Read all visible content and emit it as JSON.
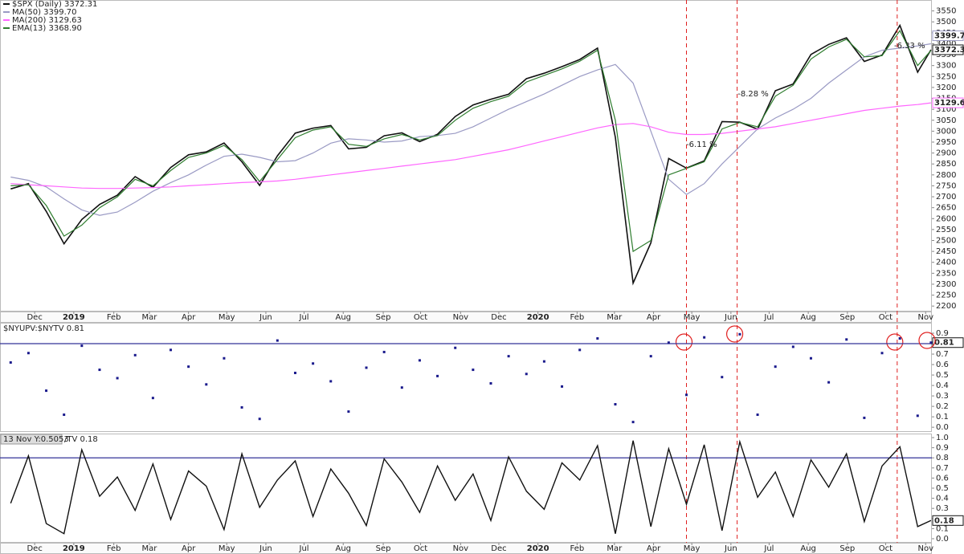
{
  "chart_data": [
    {
      "type": "line",
      "x": [
        0,
        2,
        4,
        6,
        8,
        10,
        12,
        14,
        16,
        18,
        20,
        22,
        24,
        26,
        28,
        30,
        32,
        34,
        36,
        38,
        40,
        42,
        44,
        46,
        48,
        50,
        52,
        54,
        56,
        58,
        60,
        62,
        64,
        66,
        68,
        70,
        72,
        74,
        76,
        78,
        80,
        82,
        84,
        86,
        88,
        90,
        92,
        94,
        96,
        98,
        100,
        102,
        103.5
      ],
      "xlim": [
        -1.2,
        103.6
      ],
      "ylim": [
        2175,
        3600
      ],
      "yticks": [
        2200,
        2250,
        2300,
        2350,
        2400,
        2450,
        2500,
        2550,
        2600,
        2650,
        2700,
        2750,
        2800,
        2850,
        2900,
        2950,
        3000,
        3050,
        3100,
        3150,
        3200,
        3250,
        3300,
        3350,
        3400,
        3450,
        3500,
        3550
      ],
      "xticks": [
        {
          "value": 2.7,
          "label": "Dec"
        },
        {
          "value": 7.1,
          "label": "2019"
        },
        {
          "value": 11.6,
          "label": "Feb"
        },
        {
          "value": 15.6,
          "label": "Mar"
        },
        {
          "value": 20,
          "label": "Apr"
        },
        {
          "value": 24.3,
          "label": "May"
        },
        {
          "value": 28.7,
          "label": "Jun"
        },
        {
          "value": 33,
          "label": "Jul"
        },
        {
          "value": 37.4,
          "label": "Aug"
        },
        {
          "value": 41.9,
          "label": "Sep"
        },
        {
          "value": 46.1,
          "label": "Oct"
        },
        {
          "value": 50.6,
          "label": "Nov"
        },
        {
          "value": 54.9,
          "label": "Dec"
        },
        {
          "value": 59.3,
          "label": "2020"
        },
        {
          "value": 63.7,
          "label": "Feb"
        },
        {
          "value": 67.9,
          "label": "Mar"
        },
        {
          "value": 72.3,
          "label": "Apr"
        },
        {
          "value": 76.6,
          "label": "May"
        },
        {
          "value": 81,
          "label": "Jun"
        },
        {
          "value": 85.3,
          "label": "Jul"
        },
        {
          "value": 89.7,
          "label": "Aug"
        },
        {
          "value": 94.1,
          "label": "Sep"
        },
        {
          "value": 98.4,
          "label": "Oct"
        },
        {
          "value": 102.9,
          "label": "Nov"
        }
      ],
      "vlines": [
        76.0,
        81.7,
        99.7
      ],
      "series": [
        {
          "name": "$SPX (Daily) 3372.31",
          "color": "#111111",
          "values": [
            2736,
            2760,
            2633,
            2485,
            2596,
            2665,
            2707,
            2792,
            2743,
            2834,
            2892,
            2905,
            2946,
            2860,
            2752,
            2887,
            2991,
            3014,
            3026,
            2919,
            2926,
            2979,
            2992,
            2952,
            2986,
            3067,
            3120,
            3146,
            3169,
            3240,
            3265,
            3295,
            3328,
            3380,
            2972,
            2305,
            2489,
            2875,
            2831,
            2864,
            3044,
            3041,
            3009,
            3185,
            3216,
            3351,
            3397,
            3427,
            3319,
            3348,
            3484,
            3270,
            3372.31
          ]
        },
        {
          "name": "MA(50) 3399.70",
          "color": "#9a9ac4",
          "values": [
            2790,
            2775,
            2745,
            2690,
            2640,
            2615,
            2630,
            2675,
            2725,
            2765,
            2800,
            2845,
            2885,
            2895,
            2880,
            2860,
            2865,
            2900,
            2945,
            2965,
            2960,
            2950,
            2955,
            2975,
            2980,
            2990,
            3020,
            3060,
            3100,
            3135,
            3170,
            3210,
            3250,
            3280,
            3305,
            3220,
            3000,
            2780,
            2710,
            2760,
            2850,
            2930,
            3010,
            3060,
            3100,
            3150,
            3220,
            3280,
            3340,
            3370,
            3380,
            3390,
            3399.7
          ],
          "value_labels": [
            null,
            null,
            null,
            null,
            null,
            null,
            null,
            null,
            null,
            null,
            null,
            null,
            null,
            null,
            null,
            null,
            null,
            null,
            null,
            null,
            null,
            null,
            null,
            null,
            null,
            null,
            null,
            null,
            null,
            null,
            null,
            null,
            null,
            null,
            null,
            null,
            null,
            null,
            null,
            null,
            null,
            null,
            null,
            null,
            null,
            null,
            null,
            null,
            null,
            null,
            null,
            null,
            "3399.70"
          ]
        },
        {
          "name": "MA(200) 3129.63",
          "color": "#ff66ff",
          "values": [
            2760,
            2755,
            2750,
            2745,
            2740,
            2738,
            2738,
            2740,
            2742,
            2745,
            2750,
            2755,
            2760,
            2765,
            2768,
            2772,
            2780,
            2790,
            2800,
            2810,
            2820,
            2830,
            2840,
            2850,
            2860,
            2870,
            2885,
            2900,
            2915,
            2935,
            2955,
            2975,
            2995,
            3015,
            3030,
            3035,
            3020,
            2995,
            2985,
            2985,
            2990,
            3000,
            3010,
            3020,
            3035,
            3050,
            3065,
            3080,
            3095,
            3105,
            3115,
            3122,
            3129.63
          ]
        },
        {
          "name": "EMA(13) 3368.90",
          "color": "#2e7d2e",
          "values": [
            2750,
            2755,
            2660,
            2520,
            2570,
            2650,
            2700,
            2780,
            2750,
            2820,
            2880,
            2900,
            2935,
            2870,
            2770,
            2870,
            2970,
            3005,
            3020,
            2940,
            2930,
            2965,
            2985,
            2960,
            2980,
            3050,
            3105,
            3135,
            3160,
            3225,
            3255,
            3285,
            3320,
            3370,
            3050,
            2450,
            2500,
            2800,
            2830,
            2860,
            3010,
            3040,
            3020,
            3160,
            3210,
            3330,
            3385,
            3420,
            3340,
            3345,
            3460,
            3300,
            3368.9
          ]
        }
      ],
      "annotations": [
        {
          "label": "-8.28 %",
          "x": 83.5,
          "y": 3170
        },
        {
          "label": "-6.11 %",
          "x": 77.7,
          "y": 2939
        },
        {
          "label": "-6.33 %",
          "x": 101.1,
          "y": 3391
        }
      ]
    },
    {
      "type": "scatter",
      "title": "$NYUPV:$NYTV 0.81",
      "color": "#1a1a8c",
      "x": [
        0,
        2,
        4,
        6,
        8,
        10,
        12,
        14,
        16,
        18,
        20,
        22,
        24,
        26,
        28,
        30,
        32,
        34,
        36,
        38,
        40,
        42,
        44,
        46,
        48,
        50,
        52,
        54,
        56,
        58,
        60,
        62,
        64,
        66,
        68,
        70,
        72,
        74,
        76,
        78,
        80,
        82,
        84,
        86,
        88,
        90,
        92,
        94,
        96,
        98,
        100,
        102,
        103.5
      ],
      "xlim": [
        -1.2,
        103.6
      ],
      "ylim": [
        -0.045,
        1.0
      ],
      "yticks": [
        {
          "value": 0,
          "label": "0.0"
        },
        0.1,
        0.2,
        0.3,
        0.4,
        0.5,
        0.6,
        0.7,
        0.8,
        0.9
      ],
      "hline": 0.8,
      "values": [
        0.62,
        0.71,
        0.35,
        0.12,
        0.78,
        0.55,
        0.47,
        0.69,
        0.28,
        0.74,
        0.58,
        0.41,
        0.66,
        0.19,
        0.08,
        0.83,
        0.52,
        0.61,
        0.44,
        0.15,
        0.57,
        0.72,
        0.38,
        0.64,
        0.49,
        0.76,
        0.55,
        0.42,
        0.68,
        0.51,
        0.63,
        0.39,
        0.74,
        0.85,
        0.22,
        0.05,
        0.68,
        0.81,
        0.31,
        0.86,
        0.48,
        0.89,
        0.12,
        0.58,
        0.77,
        0.66,
        0.43,
        0.84,
        0.09,
        0.71,
        0.85,
        0.11,
        0.81
      ]
    },
    {
      "type": "line",
      "title": "/TV 0.18",
      "crosshair_label": "13 Nov Y:0.5053",
      "color": "#111111",
      "x": [
        0,
        2,
        4,
        6,
        8,
        10,
        12,
        14,
        16,
        18,
        20,
        22,
        24,
        26,
        28,
        30,
        32,
        34,
        36,
        38,
        40,
        42,
        44,
        46,
        48,
        50,
        52,
        54,
        56,
        58,
        60,
        62,
        64,
        66,
        68,
        70,
        72,
        74,
        76,
        78,
        80,
        82,
        84,
        86,
        88,
        90,
        92,
        94,
        96,
        98,
        100,
        102,
        103.5
      ],
      "xlim": [
        -1.2,
        103.6
      ],
      "ylim": [
        -0.04,
        1.04
      ],
      "yticks": [
        {
          "value": 0,
          "label": "0.0"
        },
        0.1,
        0.2,
        0.3,
        0.4,
        0.5,
        0.6,
        0.7,
        0.8,
        0.9,
        {
          "value": 1,
          "label": "1.0"
        }
      ],
      "hline": 0.8,
      "xticks": [
        {
          "value": 2.7,
          "label": "Dec"
        },
        {
          "value": 7.1,
          "label": "2019"
        },
        {
          "value": 11.6,
          "label": "Feb"
        },
        {
          "value": 15.6,
          "label": "Mar"
        },
        {
          "value": 20,
          "label": "Apr"
        },
        {
          "value": 24.3,
          "label": "May"
        },
        {
          "value": 28.7,
          "label": "Jun"
        },
        {
          "value": 33,
          "label": "Jul"
        },
        {
          "value": 37.4,
          "label": "Aug"
        },
        {
          "value": 41.9,
          "label": "Sep"
        },
        {
          "value": 46.1,
          "label": "Oct"
        },
        {
          "value": 50.6,
          "label": "Nov"
        },
        {
          "value": 54.9,
          "label": "Dec"
        },
        {
          "value": 59.3,
          "label": "2020"
        },
        {
          "value": 63.7,
          "label": "Feb"
        },
        {
          "value": 67.9,
          "label": "Mar"
        },
        {
          "value": 72.3,
          "label": "Apr"
        },
        {
          "value": 76.6,
          "label": "May"
        },
        {
          "value": 81,
          "label": "Jun"
        },
        {
          "value": 85.3,
          "label": "Jul"
        },
        {
          "value": 89.7,
          "label": "Aug"
        },
        {
          "value": 94.1,
          "label": "Sep"
        },
        {
          "value": 98.4,
          "label": "Oct"
        },
        {
          "value": 102.9,
          "label": "Nov"
        }
      ],
      "values": [
        0.35,
        0.82,
        0.15,
        0.05,
        0.88,
        0.42,
        0.61,
        0.28,
        0.74,
        0.19,
        0.67,
        0.52,
        0.09,
        0.84,
        0.31,
        0.58,
        0.77,
        0.22,
        0.69,
        0.45,
        0.13,
        0.79,
        0.56,
        0.26,
        0.72,
        0.38,
        0.64,
        0.18,
        0.81,
        0.47,
        0.29,
        0.75,
        0.58,
        0.92,
        0.05,
        0.97,
        0.12,
        0.89,
        0.34,
        0.93,
        0.08,
        0.96,
        0.41,
        0.66,
        0.22,
        0.78,
        0.51,
        0.84,
        0.17,
        0.72,
        0.91,
        0.12,
        0.18
      ]
    }
  ]
}
